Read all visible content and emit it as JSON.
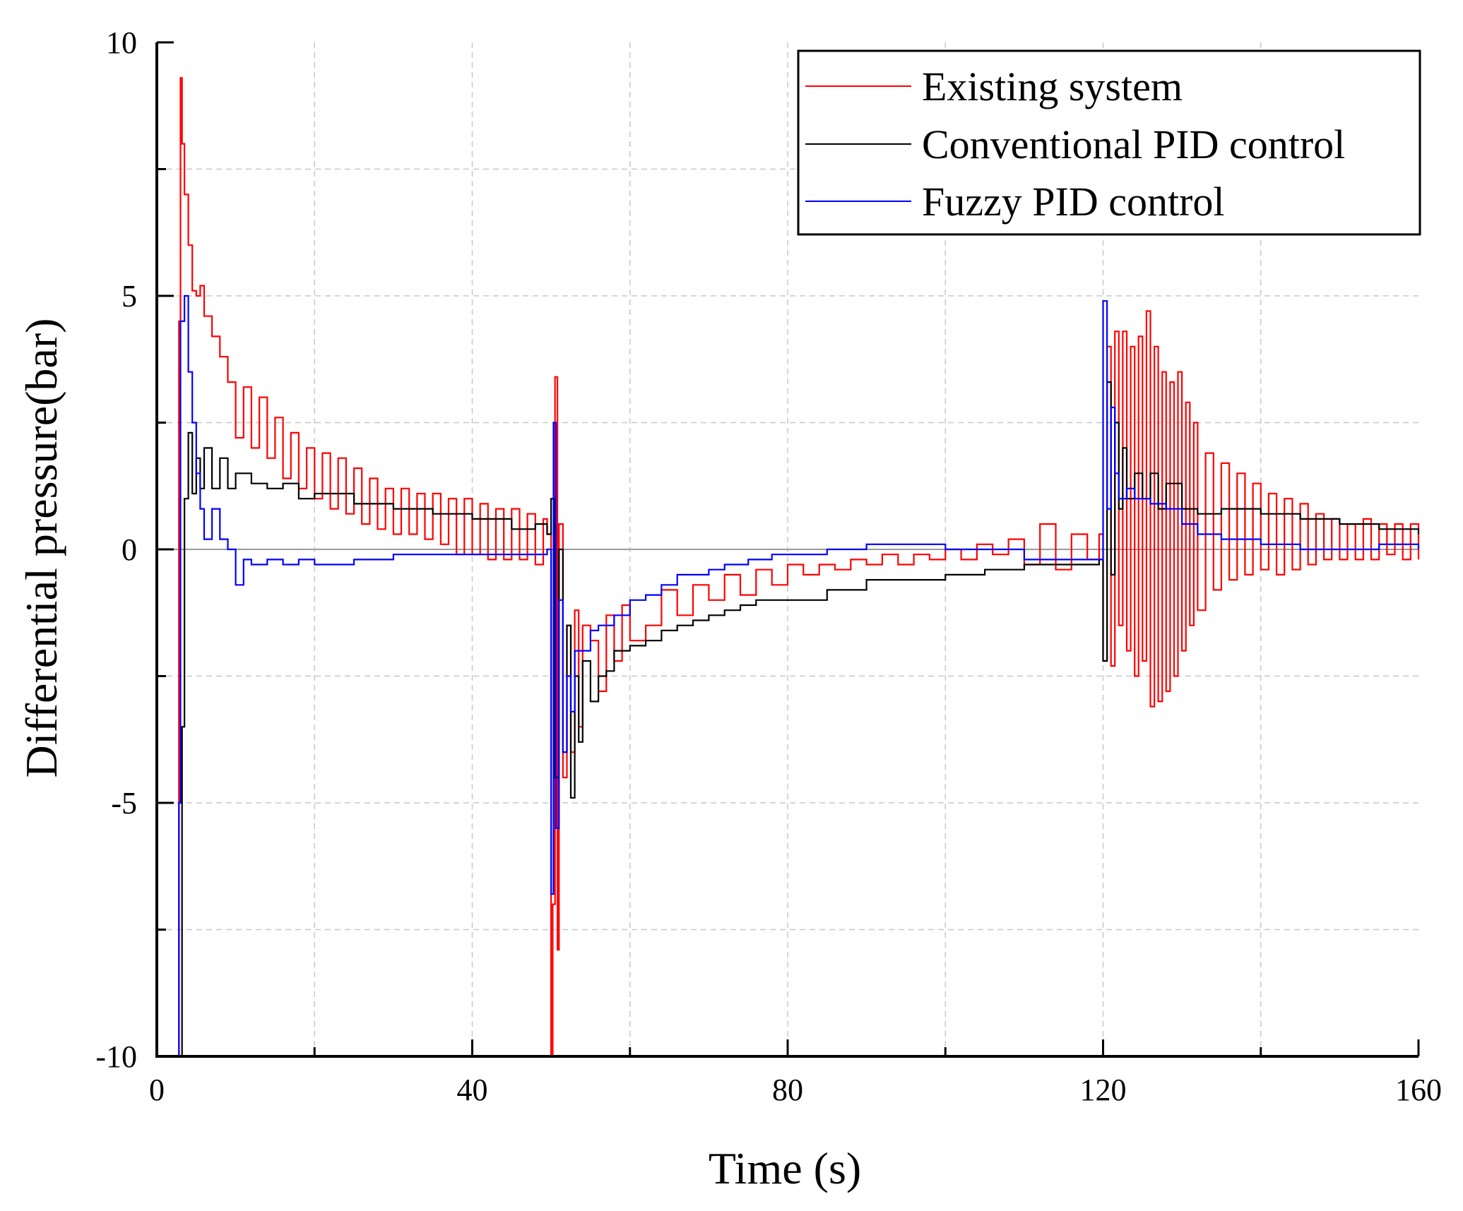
{
  "chart_data": {
    "type": "line",
    "title": "",
    "xlabel": "Time (s)",
    "ylabel": "Differential pressure(bar)",
    "xlim": [
      0,
      160
    ],
    "ylim": [
      -10,
      10
    ],
    "x_ticks": [
      0,
      40,
      80,
      120,
      160
    ],
    "x_tick_labels": [
      "0",
      "40",
      "80",
      "120",
      "160"
    ],
    "y_ticks": [
      -10,
      -5,
      0,
      5,
      10
    ],
    "y_tick_labels": [
      "-10",
      "-5",
      "0",
      "5",
      "10"
    ],
    "grid": true,
    "zero_line": true,
    "legend_position": "top-right",
    "series": [
      {
        "name": "Existing system",
        "color": "#ff0000",
        "x": [
          2.5,
          2.8,
          3.0,
          3.2,
          3.5,
          4.0,
          4.5,
          5.0,
          5.5,
          6.0,
          7.0,
          8.0,
          9.0,
          10.0,
          11.0,
          12.0,
          13.0,
          14.0,
          15.0,
          16.0,
          17.0,
          18.0,
          19.0,
          20.0,
          21.0,
          22.0,
          23.0,
          24.0,
          25.0,
          26.0,
          27.0,
          28.0,
          29.0,
          30.0,
          31.0,
          32.0,
          33.0,
          34.0,
          35.0,
          36.0,
          37.0,
          38.0,
          39.0,
          40.0,
          41.0,
          42.0,
          43.0,
          44.0,
          45.0,
          46.0,
          47.0,
          48.0,
          49.0,
          49.5,
          50.0,
          50.2,
          50.5,
          50.8,
          51.0,
          51.5,
          52.0,
          52.5,
          53.0,
          53.5,
          54.0,
          55.0,
          56.0,
          57.0,
          58.0,
          59.0,
          60.0,
          62.0,
          64.0,
          66.0,
          68.0,
          70.0,
          72.0,
          74.0,
          76.0,
          78.0,
          80.0,
          82.0,
          84.0,
          86.0,
          88.0,
          90.0,
          92.0,
          94.0,
          96.0,
          98.0,
          100.0,
          102.0,
          104.0,
          106.0,
          108.0,
          110.0,
          112.0,
          114.0,
          116.0,
          118.0,
          119.5,
          120.0,
          120.5,
          121.0,
          121.5,
          122.0,
          122.5,
          123.0,
          123.5,
          124.0,
          124.5,
          125.0,
          125.5,
          126.0,
          126.5,
          127.0,
          127.5,
          128.0,
          128.5,
          129.0,
          129.5,
          130.0,
          130.5,
          131.0,
          131.5,
          132.0,
          133.0,
          134.0,
          135.0,
          136.0,
          137.0,
          138.0,
          139.0,
          140.0,
          141.0,
          142.0,
          143.0,
          144.0,
          145.0,
          146.0,
          147.0,
          148.0,
          149.0,
          150.0,
          151.0,
          152.0,
          153.0,
          154.0,
          155.0,
          156.0,
          157.0,
          158.0,
          159.0,
          160.0
        ],
        "y": [
          -10,
          4.5,
          9.3,
          8.0,
          7.0,
          6.0,
          5.1,
          5.0,
          5.2,
          4.6,
          4.2,
          3.8,
          3.3,
          2.2,
          3.2,
          2.0,
          3.0,
          1.8,
          2.6,
          1.4,
          2.3,
          1.2,
          2.0,
          1.0,
          1.9,
          0.8,
          1.8,
          0.7,
          1.6,
          0.5,
          1.4,
          0.4,
          1.2,
          0.3,
          1.2,
          0.3,
          1.1,
          0.2,
          1.1,
          0.1,
          1.0,
          -0.1,
          1.0,
          -0.1,
          0.9,
          -0.2,
          0.8,
          -0.2,
          0.8,
          -0.2,
          0.7,
          -0.3,
          0.6,
          0.3,
          -10,
          -7.0,
          3.4,
          -7.9,
          0.5,
          -4.5,
          -1.5,
          -4.0,
          -1.2,
          -3.5,
          -1.5,
          -1.8,
          -2.8,
          -1.3,
          -2.2,
          -1.1,
          -1.8,
          -1.5,
          -0.8,
          -1.3,
          -0.7,
          -1.0,
          -0.5,
          -0.9,
          -0.4,
          -0.7,
          -0.3,
          -0.5,
          -0.3,
          -0.4,
          -0.2,
          -0.3,
          -0.1,
          -0.3,
          -0.1,
          -0.2,
          0.0,
          -0.2,
          0.1,
          -0.1,
          0.2,
          -0.3,
          0.5,
          -0.4,
          0.3,
          -0.2,
          0.3,
          -2.2,
          4.0,
          -2.3,
          4.3,
          -1.5,
          4.3,
          -2.0,
          4.0,
          -2.5,
          4.2,
          -2.2,
          4.7,
          -3.1,
          4.0,
          -3.0,
          3.5,
          -2.8,
          3.3,
          -2.5,
          3.5,
          -2.0,
          2.9,
          -1.5,
          2.5,
          -1.2,
          1.9,
          -0.8,
          1.7,
          -0.6,
          1.5,
          -0.5,
          1.3,
          -0.4,
          1.1,
          -0.5,
          1.0,
          -0.4,
          0.9,
          -0.3,
          0.7,
          -0.2,
          0.6,
          -0.2,
          0.5,
          -0.2,
          0.6,
          -0.2,
          0.5,
          -0.1,
          0.5,
          -0.2,
          0.5,
          -0.2
        ]
      },
      {
        "name": "Conventional PID control",
        "color": "#000000",
        "x": [
          2.8,
          3.2,
          3.5,
          4.0,
          4.5,
          5.0,
          5.5,
          6.0,
          7.0,
          8.0,
          9.0,
          10.0,
          12.0,
          14.0,
          16.0,
          18.0,
          20.0,
          25.0,
          30.0,
          35.0,
          40.0,
          45.0,
          48.0,
          49.5,
          50.0,
          50.5,
          51.0,
          51.5,
          52.0,
          52.5,
          53.0,
          53.5,
          54.0,
          55.0,
          56.0,
          57.0,
          58.0,
          60.0,
          62.0,
          64.0,
          66.0,
          68.0,
          70.0,
          72.0,
          74.0,
          76.0,
          80.0,
          85.0,
          90.0,
          95.0,
          100.0,
          105.0,
          110.0,
          115.0,
          119.5,
          120.0,
          120.5,
          121.0,
          121.5,
          122.0,
          122.5,
          123.0,
          124.0,
          125.0,
          126.0,
          127.0,
          128.0,
          130.0,
          132.0,
          135.0,
          140.0,
          145.0,
          150.0,
          155.0,
          160.0
        ],
        "y": [
          -10,
          -3.5,
          1.0,
          2.3,
          1.1,
          1.8,
          1.2,
          2.0,
          1.2,
          1.8,
          1.2,
          1.5,
          1.3,
          1.2,
          1.3,
          1.0,
          1.1,
          0.9,
          0.8,
          0.7,
          0.6,
          0.4,
          0.5,
          0.3,
          1.0,
          -4.5,
          0.0,
          -4.0,
          -1.5,
          -4.9,
          -2.5,
          -3.8,
          -2.2,
          -3.0,
          -2.5,
          -2.4,
          -2.0,
          -1.9,
          -1.8,
          -1.6,
          -1.5,
          -1.4,
          -1.3,
          -1.2,
          -1.1,
          -1.0,
          -1.0,
          -0.8,
          -0.6,
          -0.6,
          -0.5,
          -0.4,
          -0.3,
          -0.3,
          -0.2,
          -2.2,
          3.3,
          -0.5,
          2.5,
          0.8,
          2.0,
          1.0,
          1.5,
          1.0,
          1.5,
          0.8,
          1.3,
          0.8,
          0.7,
          0.8,
          0.7,
          0.6,
          0.5,
          0.4,
          0.3
        ]
      },
      {
        "name": "Fuzzy PID control",
        "color": "#0000ff",
        "x": [
          2.5,
          2.8,
          3.0,
          3.5,
          4.0,
          4.5,
          5.0,
          5.5,
          6.0,
          7.0,
          8.0,
          9.0,
          10.0,
          11.0,
          12.0,
          14.0,
          16.0,
          18.0,
          20.0,
          25.0,
          30.0,
          35.0,
          40.0,
          45.0,
          49.5,
          50.0,
          50.3,
          50.6,
          51.0,
          51.5,
          52.0,
          52.5,
          53.0,
          54.0,
          55.0,
          56.0,
          58.0,
          60.0,
          62.0,
          64.0,
          66.0,
          68.0,
          70.0,
          72.0,
          75.0,
          78.0,
          80.0,
          85.0,
          90.0,
          95.0,
          100.0,
          105.0,
          110.0,
          115.0,
          119.5,
          120.0,
          120.5,
          121.0,
          121.5,
          122.0,
          123.0,
          124.0,
          126.0,
          128.0,
          130.0,
          132.0,
          135.0,
          140.0,
          145.0,
          150.0,
          155.0,
          160.0
        ],
        "y": [
          -10,
          -5.0,
          4.5,
          5.0,
          3.5,
          2.5,
          1.5,
          0.8,
          0.2,
          0.8,
          0.2,
          0.0,
          -0.7,
          -0.2,
          -0.3,
          -0.2,
          -0.3,
          -0.2,
          -0.3,
          -0.2,
          -0.1,
          -0.1,
          -0.1,
          -0.1,
          0.0,
          -6.8,
          2.5,
          -5.5,
          -1.0,
          -4.0,
          -2.5,
          -3.2,
          -2.0,
          -2.0,
          -1.6,
          -1.5,
          -1.3,
          -1.0,
          -0.9,
          -0.7,
          -0.5,
          -0.5,
          -0.4,
          -0.3,
          -0.2,
          -0.1,
          -0.1,
          0.0,
          0.1,
          0.1,
          0.0,
          0.0,
          -0.2,
          -0.2,
          -0.2,
          4.9,
          0.8,
          2.8,
          1.5,
          1.0,
          1.2,
          1.0,
          0.9,
          0.8,
          0.5,
          0.3,
          0.2,
          0.1,
          0.0,
          0.0,
          0.1,
          0.0
        ]
      }
    ]
  }
}
